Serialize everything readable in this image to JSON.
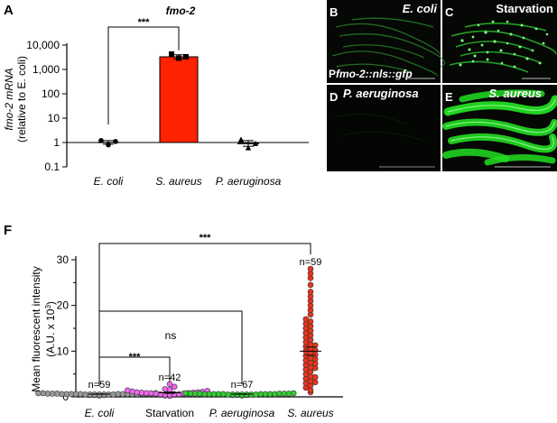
{
  "panels": {
    "A": "A",
    "B": "B",
    "C": "C",
    "D": "D",
    "E": "E",
    "F": "F"
  },
  "chart_data": [
    {
      "type": "bar",
      "panel": "A",
      "title": "fmo-2",
      "ylabel_line1": "fmo-2 mRNA",
      "ylabel_line2": "(relative to E. coli)",
      "yscale": "log",
      "ylim": [
        0.1,
        10000
      ],
      "yticks": [
        "0.1",
        "1",
        "10",
        "100",
        "1,000",
        "10,000"
      ],
      "ytick_values": [
        0.1,
        1,
        10,
        100,
        1000,
        10000
      ],
      "categories": [
        "E. coli",
        "S. aureus",
        "P. aeruginosa"
      ],
      "values": [
        1.0,
        3300,
        0.9
      ],
      "errors": [
        [
          0.85,
          1.2
        ],
        [
          2700,
          4000
        ],
        [
          0.7,
          1.2
        ]
      ],
      "points": [
        [
          1.2,
          0.8,
          1.1
        ],
        [
          4300,
          2900,
          3300
        ],
        [
          1.3,
          0.6,
          0.9
        ]
      ],
      "bar_colors": [
        "#ffffff",
        "#ff2200",
        "#ffffff"
      ],
      "marker_shapes": [
        "circle",
        "square",
        "triangle"
      ],
      "reference_line": 1,
      "significance": {
        "label": "***",
        "between": [
          "E. coli",
          "S. aureus"
        ]
      }
    },
    {
      "type": "scatter",
      "panel": "F",
      "ylabel_line1": "Mean fluorescent intensity",
      "ylabel_line2": "(A.U. x 10",
      "ylabel_sup": "3",
      "ylabel_close": ")",
      "ylim": [
        0,
        30
      ],
      "yticks": [
        "0",
        "10",
        "20",
        "30"
      ],
      "ytick_values": [
        0,
        10,
        20,
        30
      ],
      "categories": [
        "E. coli",
        "Starvation",
        "P. aeruginosa",
        "S. aureus"
      ],
      "n_labels": [
        "n=59",
        "n=42",
        "n=67",
        "n=59"
      ],
      "colors": [
        "#9a9a9a",
        "#ee66ee",
        "#33cc33",
        "#e8341c"
      ],
      "means": [
        0.6,
        0.9,
        0.6,
        10.0
      ],
      "sems": [
        0.05,
        0.15,
        0.05,
        0.9
      ],
      "points": [
        [
          0.3,
          0.4,
          0.5,
          0.5,
          0.6,
          0.6,
          0.6,
          0.7,
          0.7,
          0.8,
          0.5,
          0.6,
          0.4,
          0.7,
          0.6,
          0.5,
          0.8,
          0.6,
          0.7,
          0.5,
          0.6,
          0.4,
          0.7,
          0.6,
          0.5,
          0.6,
          0.7,
          0.8,
          0.5,
          0.6
        ],
        [
          0.2,
          0.4,
          0.5,
          0.6,
          0.7,
          0.8,
          0.9,
          1.0,
          1.1,
          1.3,
          0.6,
          0.8,
          1.5,
          1.7,
          2.2,
          2.8,
          0.5,
          0.7,
          0.9,
          1.2,
          0.4,
          0.6,
          0.8,
          1.0,
          0.3,
          1.4
        ],
        [
          0.3,
          0.4,
          0.5,
          0.5,
          0.6,
          0.6,
          0.7,
          0.7,
          0.8,
          0.5,
          0.6,
          0.6,
          0.7,
          0.4,
          0.5,
          0.6,
          0.7,
          0.8,
          0.6,
          0.5,
          0.6,
          0.7,
          0.5,
          0.6,
          0.4,
          0.6,
          0.7,
          0.5
        ],
        [
          1.0,
          1.5,
          2.0,
          2.5,
          3.0,
          3.2,
          3.5,
          4.0,
          4.3,
          4.5,
          5.0,
          5.5,
          6.0,
          6.3,
          6.5,
          7.0,
          7.3,
          7.5,
          8.0,
          8.3,
          8.5,
          9.0,
          9.2,
          9.5,
          10.0,
          10.2,
          10.5,
          11.0,
          11.3,
          11.5,
          12.0,
          12.5,
          13.0,
          13.5,
          14.0,
          14.5,
          15.0,
          15.5,
          16.0,
          16.5,
          17.0,
          18.0,
          19.0,
          20.0,
          21.0,
          22.0,
          23.0,
          24.5,
          26.0,
          27.0,
          28.0
        ]
      ],
      "comparisons": [
        {
          "label": "***",
          "between": [
            "E. coli",
            "S. aureus"
          ]
        },
        {
          "label": "ns",
          "between": [
            "E. coli",
            "P. aeruginosa"
          ]
        },
        {
          "label": "***",
          "between": [
            "E. coli",
            "Starvation"
          ]
        }
      ]
    }
  ],
  "micrographs": [
    {
      "panel": "B",
      "label": "E. coli"
    },
    {
      "panel": "C",
      "label": "Starvation"
    },
    {
      "panel": "D",
      "label": "P. aeruginosa"
    },
    {
      "panel": "E",
      "label": "S. aureus"
    }
  ],
  "reporter": {
    "prefix": "P",
    "name": "fmo-2::nls::gfp"
  },
  "colors": {
    "axis": "#000000",
    "gfp": "#22ee22"
  }
}
